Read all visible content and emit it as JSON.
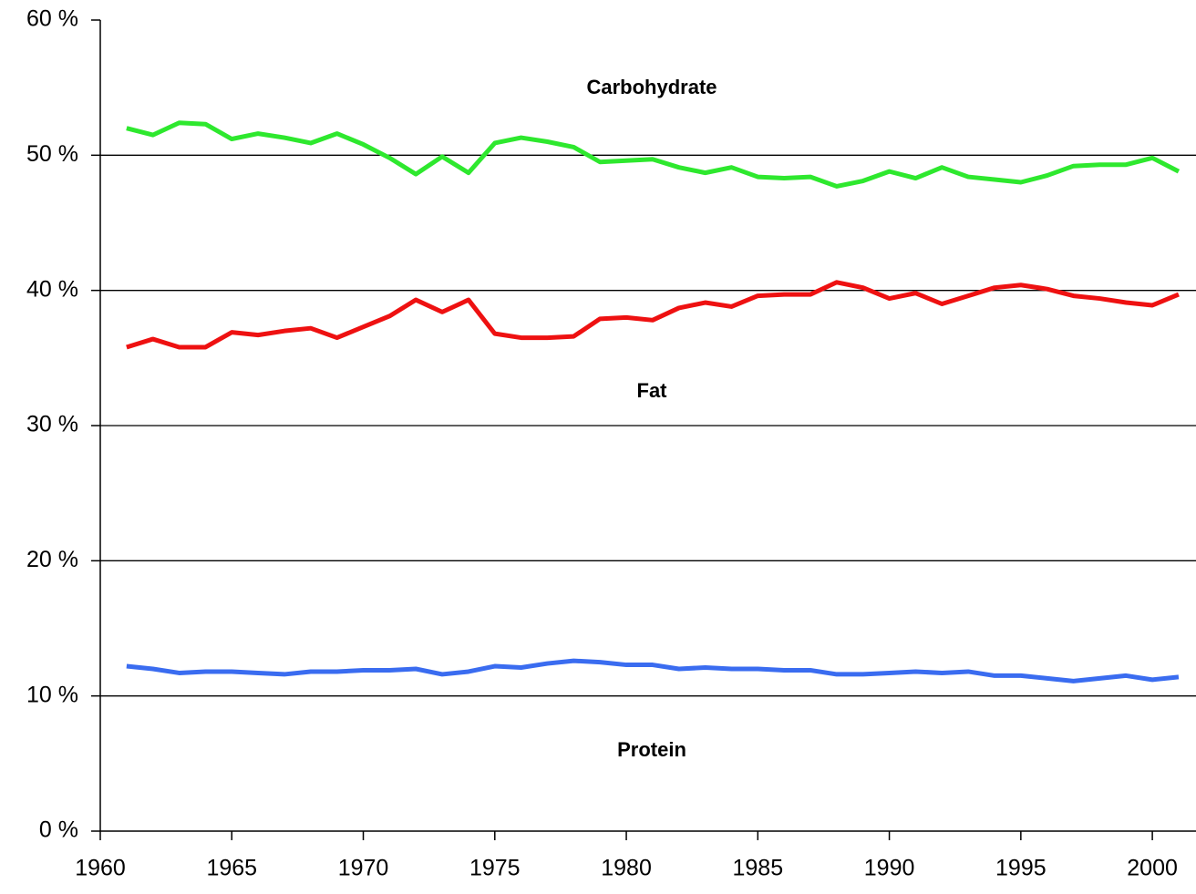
{
  "chart_data": {
    "type": "line",
    "x": [
      1961,
      1962,
      1963,
      1964,
      1965,
      1966,
      1967,
      1968,
      1969,
      1970,
      1971,
      1972,
      1973,
      1974,
      1975,
      1976,
      1977,
      1978,
      1979,
      1980,
      1981,
      1982,
      1983,
      1984,
      1985,
      1986,
      1987,
      1988,
      1989,
      1990,
      1991,
      1992,
      1993,
      1994,
      1995,
      1996,
      1997,
      1998,
      1999,
      2000,
      2001
    ],
    "series": [
      {
        "name": "Carbohydrate",
        "color": "#2ee82e",
        "values": [
          52.0,
          51.5,
          52.4,
          52.3,
          51.2,
          51.6,
          51.3,
          50.9,
          51.6,
          50.8,
          49.8,
          48.6,
          49.9,
          48.7,
          50.9,
          51.3,
          51.0,
          50.6,
          49.5,
          49.6,
          49.7,
          49.1,
          48.7,
          49.1,
          48.4,
          48.3,
          48.4,
          47.7,
          48.1,
          48.8,
          48.3,
          49.1,
          48.4,
          48.2,
          48.0,
          48.5,
          49.2,
          49.3,
          49.3,
          49.8,
          48.8
        ]
      },
      {
        "name": "Fat",
        "color": "#ee1111",
        "values": [
          35.8,
          36.4,
          35.8,
          35.8,
          36.9,
          36.7,
          37.0,
          37.2,
          36.5,
          37.3,
          38.1,
          39.3,
          38.4,
          39.3,
          36.8,
          36.5,
          36.5,
          36.6,
          37.9,
          38.0,
          37.8,
          38.7,
          39.1,
          38.8,
          39.6,
          39.7,
          39.7,
          40.6,
          40.2,
          39.4,
          39.8,
          39.0,
          39.6,
          40.2,
          40.4,
          40.1,
          39.6,
          39.4,
          39.1,
          38.9,
          39.7
        ]
      },
      {
        "name": "Protein",
        "color": "#3a6cf0",
        "values": [
          12.2,
          12.0,
          11.7,
          11.8,
          11.8,
          11.7,
          11.6,
          11.8,
          11.8,
          11.9,
          11.9,
          12.0,
          11.6,
          11.8,
          12.2,
          12.1,
          12.4,
          12.6,
          12.5,
          12.3,
          12.3,
          12.0,
          12.1,
          12.0,
          12.0,
          11.9,
          11.9,
          11.6,
          11.6,
          11.7,
          11.8,
          11.7,
          11.8,
          11.5,
          11.5,
          11.3,
          11.1,
          11.3,
          11.5,
          11.2,
          11.4
        ]
      }
    ],
    "annotations": [
      "Carbohydrate",
      "Fat",
      "Protein"
    ],
    "xlim": [
      1960,
      2001.66
    ],
    "xticks": [
      1960,
      1965,
      1970,
      1975,
      1980,
      1985,
      1990,
      1995,
      2000
    ],
    "ylim": [
      0,
      60
    ],
    "yticks": [
      {
        "value": 0,
        "label": "0 %"
      },
      {
        "value": 10,
        "label": "10 %"
      },
      {
        "value": 20,
        "label": "20 %"
      },
      {
        "value": 30,
        "label": "30 %"
      },
      {
        "value": 40,
        "label": "40 %"
      },
      {
        "value": 50,
        "label": "50 %"
      },
      {
        "value": 60,
        "label": "60 %"
      }
    ],
    "grid": true
  }
}
